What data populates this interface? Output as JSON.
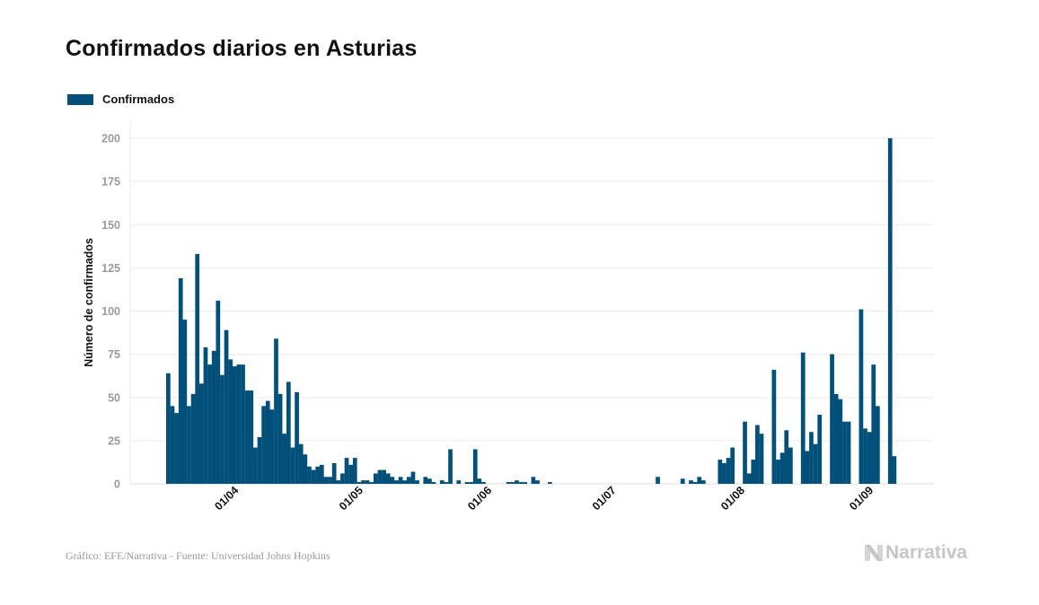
{
  "title": "Confirmados diarios en Asturias",
  "source": "Gráfico: EFE/Narrativa - Fuente: Universidad Johns Hopkins",
  "logo_text": "Narrativa",
  "colors": {
    "bar": "#00507a",
    "grid": "#ebebeb",
    "tick_text": "#9a9a9a"
  },
  "chart_data": {
    "type": "bar",
    "title": "Confirmados diarios en Asturias",
    "xlabel": "",
    "ylabel": "Número de confirmados",
    "ylim": [
      0,
      200
    ],
    "yticks": [
      0,
      25,
      50,
      75,
      100,
      125,
      150,
      175,
      200
    ],
    "grid": true,
    "legend": "top-left",
    "xtick_labels": [
      "01/04",
      "01/05",
      "01/06",
      "01/07",
      "01/08",
      "01/09"
    ],
    "x": [
      "17/03",
      "18/03",
      "19/03",
      "20/03",
      "21/03",
      "22/03",
      "23/03",
      "24/03",
      "25/03",
      "26/03",
      "27/03",
      "28/03",
      "29/03",
      "30/03",
      "31/03",
      "01/04",
      "02/04",
      "03/04",
      "04/04",
      "05/04",
      "06/04",
      "07/04",
      "08/04",
      "09/04",
      "10/04",
      "11/04",
      "12/04",
      "13/04",
      "14/04",
      "15/04",
      "16/04",
      "17/04",
      "18/04",
      "19/04",
      "20/04",
      "21/04",
      "22/04",
      "23/04",
      "24/04",
      "25/04",
      "26/04",
      "27/04",
      "28/04",
      "29/04",
      "30/04",
      "01/05",
      "02/05",
      "03/05",
      "04/05",
      "05/05",
      "06/05",
      "07/05",
      "08/05",
      "09/05",
      "10/05",
      "11/05",
      "12/05",
      "13/05",
      "14/05",
      "15/05",
      "16/05",
      "17/05",
      "18/05",
      "19/05",
      "20/05",
      "21/05",
      "22/05",
      "23/05",
      "24/05",
      "25/05",
      "26/05",
      "27/05",
      "28/05",
      "29/05",
      "30/05",
      "31/05",
      "01/06",
      "02/06",
      "03/06",
      "04/06",
      "05/06",
      "06/06",
      "07/06",
      "08/06",
      "09/06",
      "10/06",
      "11/06",
      "12/06",
      "13/06",
      "14/06",
      "15/06",
      "16/06",
      "17/06",
      "18/06",
      "19/06",
      "20/06",
      "21/06",
      "22/06",
      "23/06",
      "24/06",
      "25/06",
      "26/06",
      "27/06",
      "28/06",
      "29/06",
      "30/06",
      "01/07",
      "02/07",
      "03/07",
      "04/07",
      "05/07",
      "06/07",
      "07/07",
      "08/07",
      "09/07",
      "10/07",
      "11/07",
      "12/07",
      "13/07",
      "14/07",
      "15/07",
      "16/07",
      "17/07",
      "18/07",
      "19/07",
      "20/07",
      "21/07",
      "22/07",
      "23/07",
      "24/07",
      "25/07",
      "26/07",
      "27/07",
      "28/07",
      "29/07",
      "30/07",
      "31/07",
      "01/08",
      "02/08",
      "03/08",
      "04/08",
      "05/08",
      "06/08",
      "07/08",
      "08/08",
      "09/08",
      "10/08",
      "11/08",
      "12/08",
      "13/08",
      "14/08",
      "15/08",
      "16/08",
      "17/08",
      "18/08",
      "19/08",
      "20/08",
      "21/08",
      "22/08",
      "23/08",
      "24/08",
      "25/08",
      "26/08",
      "27/08",
      "28/08",
      "29/08",
      "30/08",
      "31/08",
      "01/09",
      "02/09",
      "03/09",
      "04/09",
      "05/09",
      "06/09",
      "07/09",
      "08/09"
    ],
    "series": [
      {
        "name": "Confirmados",
        "values": [
          64,
          45,
          41,
          119,
          95,
          45,
          52,
          133,
          58,
          79,
          69,
          77,
          106,
          63,
          89,
          72,
          68,
          69,
          69,
          54,
          54,
          21,
          27,
          45,
          48,
          43,
          84,
          52,
          29,
          59,
          21,
          53,
          23,
          17,
          10,
          8,
          10,
          11,
          4,
          4,
          12,
          2,
          6,
          15,
          11,
          15,
          1,
          2,
          2,
          1,
          6,
          8,
          8,
          6,
          4,
          2,
          4,
          2,
          4,
          7,
          2,
          0,
          4,
          3,
          1,
          0,
          2,
          1,
          20,
          0,
          2,
          0,
          1,
          1,
          20,
          3,
          1,
          0,
          0,
          0,
          0,
          0,
          1,
          1,
          2,
          1,
          1,
          0,
          4,
          2,
          0,
          0,
          1,
          0,
          0,
          0,
          0,
          0,
          0,
          0,
          0,
          0,
          0,
          0,
          0,
          0,
          0,
          0,
          0,
          0,
          0,
          0,
          0,
          0,
          0,
          0,
          0,
          0,
          4,
          0,
          0,
          0,
          0,
          0,
          3,
          0,
          2,
          1,
          4,
          2,
          0,
          0,
          0,
          14,
          12,
          15,
          21,
          0,
          0,
          36,
          6,
          14,
          34,
          29,
          0,
          0,
          66,
          14,
          18,
          31,
          21,
          0,
          0,
          76,
          19,
          30,
          23,
          40,
          0,
          0,
          75,
          52,
          49,
          36,
          36,
          0,
          0,
          101,
          32,
          30,
          69,
          45,
          0,
          0,
          200,
          16
        ]
      }
    ]
  }
}
